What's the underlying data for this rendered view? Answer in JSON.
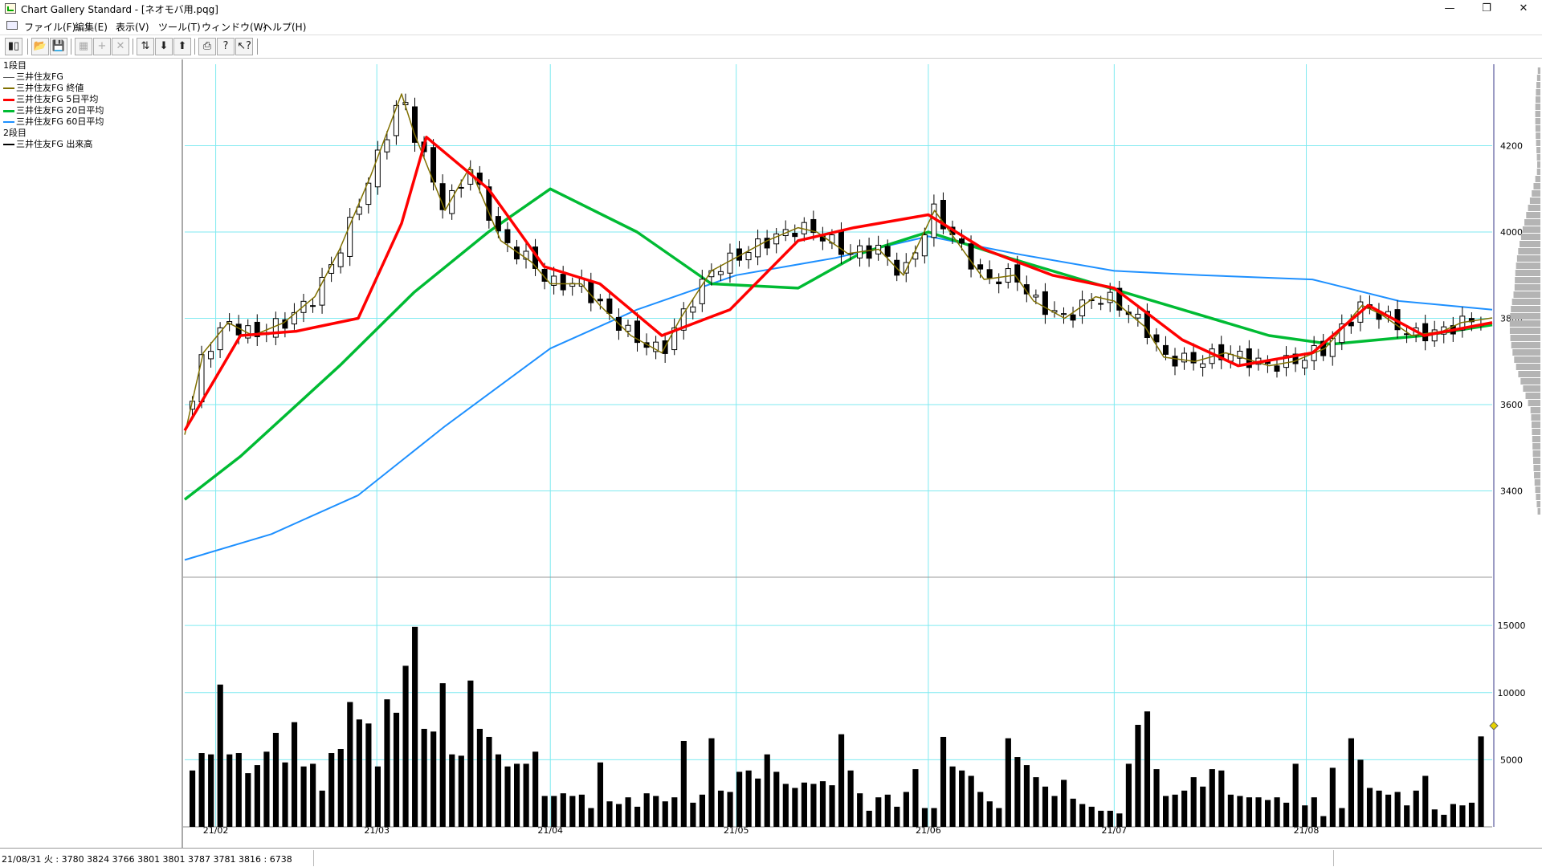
{
  "window": {
    "title": "Chart Gallery Standard - [ネオモバ用.pqg]",
    "controls": {
      "minimize": "—",
      "restore": "❐",
      "close": "✕"
    }
  },
  "menu": {
    "items": [
      "ファイル(F)",
      "編集(E)",
      "表示(V)",
      "ツール(T)",
      "ウィンドウ(W)",
      "ヘルプ(H)"
    ],
    "mdi_controls": [
      "_",
      "▫",
      "×"
    ]
  },
  "toolbar": {
    "buttons": [
      {
        "icon": "chart-settings-icon",
        "glyph": "▮▯"
      },
      {
        "icon": "open-folder-icon",
        "glyph": "📂"
      },
      {
        "icon": "save-icon",
        "glyph": "💾"
      },
      {
        "icon": "properties-icon",
        "glyph": "▦"
      },
      {
        "icon": "add-icon",
        "glyph": "+"
      },
      {
        "icon": "delete-icon",
        "glyph": "✕"
      },
      {
        "icon": "shift-icon",
        "glyph": "⇅"
      },
      {
        "icon": "download-icon",
        "glyph": "⬇"
      },
      {
        "icon": "upload-icon",
        "glyph": "⬆"
      },
      {
        "icon": "print-icon",
        "glyph": "⎙"
      },
      {
        "icon": "help-icon",
        "glyph": "?"
      },
      {
        "icon": "context-help-icon",
        "glyph": "↖?"
      }
    ]
  },
  "legend": {
    "panel1_label": "1段目",
    "panel1_items": [
      {
        "label": "三井住友FG",
        "color": "#555555"
      },
      {
        "label": "三井住友FG 終値",
        "color": "#807000"
      },
      {
        "label": "三井住友FG 5日平均",
        "color": "#ff0000"
      },
      {
        "label": "三井住友FG 20日平均",
        "color": "#00bb33"
      },
      {
        "label": "三井住友FG 60日平均",
        "color": "#1e90ff"
      }
    ],
    "panel2_label": "2段目",
    "panel2_items": [
      {
        "label": "三井住友FG 出来高",
        "color": "#000000"
      }
    ]
  },
  "status": {
    "text": "21/08/31 火 : 3780 3824 3766 3801  3801 3787 3781 3816 : 6738"
  },
  "colors": {
    "grid": "#7feaf0",
    "close_line": "#807000",
    "ma5": "#ff0000",
    "ma20": "#00bb33",
    "ma60": "#1e90ff",
    "volume": "#000000",
    "histogram": "#b4b4b4",
    "cursor_marker": "#e6d200"
  },
  "chart_data": {
    "type": "candlestick",
    "title": "",
    "price_panel": {
      "ylim": [
        3200,
        4400
      ],
      "yticks": [
        3400,
        3600,
        3800,
        4000,
        4200
      ],
      "series": [
        {
          "name": "三井住友FG 終値",
          "type": "line",
          "x": [
            "21/02/01",
            "21/02/04",
            "21/02/08",
            "21/02/12",
            "21/02/17",
            "21/02/22",
            "21/02/26",
            "21/03/03",
            "21/03/08",
            "21/03/10",
            "21/03/15",
            "21/03/19",
            "21/03/24",
            "21/03/29",
            "21/04/01",
            "21/04/06",
            "21/04/09",
            "21/04/14",
            "21/04/19",
            "21/04/22",
            "21/04/27",
            "21/05/06",
            "21/05/11",
            "21/05/14",
            "21/05/19",
            "21/05/24",
            "21/05/28",
            "21/06/02",
            "21/06/07",
            "21/06/10",
            "21/06/15",
            "21/06/18",
            "21/06/23",
            "21/06/28",
            "21/07/01",
            "21/07/06",
            "21/07/09",
            "21/07/14",
            "21/07/19",
            "21/07/26",
            "21/07/30",
            "21/08/04",
            "21/08/10",
            "21/08/13",
            "21/08/18",
            "21/08/23",
            "21/08/26",
            "21/08/31"
          ],
          "values": [
            3530,
            3720,
            3790,
            3760,
            3790,
            3850,
            3960,
            4130,
            4320,
            4230,
            4050,
            4150,
            3980,
            3930,
            3880,
            3880,
            3830,
            3760,
            3720,
            3800,
            3910,
            3980,
            4010,
            4000,
            3950,
            3960,
            3900,
            4050,
            3950,
            3890,
            3900,
            3840,
            3800,
            3850,
            3840,
            3780,
            3710,
            3700,
            3720,
            3690,
            3700,
            3730,
            3830,
            3810,
            3760,
            3770,
            3790,
            3801
          ]
        },
        {
          "name": "三井住友FG 5日平均",
          "x": [
            "21/02/01",
            "21/02/10",
            "21/02/19",
            "21/03/01",
            "21/03/08",
            "21/03/12",
            "21/03/22",
            "21/03/31",
            "21/04/09",
            "21/04/19",
            "21/04/30",
            "21/05/11",
            "21/05/20",
            "21/06/01",
            "21/06/10",
            "21/06/21",
            "21/07/01",
            "21/07/12",
            "21/07/21",
            "21/08/02",
            "21/08/11",
            "21/08/20",
            "21/08/31"
          ],
          "values": [
            3540,
            3760,
            3770,
            3800,
            4020,
            4220,
            4100,
            3920,
            3880,
            3760,
            3820,
            3980,
            4010,
            4040,
            3960,
            3900,
            3870,
            3750,
            3690,
            3720,
            3830,
            3760,
            3790
          ]
        },
        {
          "name": "三井住友FG 20日平均",
          "x": [
            "21/02/01",
            "21/02/10",
            "21/02/26",
            "21/03/10",
            "21/03/22",
            "21/04/01",
            "21/04/15",
            "21/04/27",
            "21/05/11",
            "21/05/21",
            "21/06/01",
            "21/06/14",
            "21/06/28",
            "21/07/12",
            "21/07/26",
            "21/08/05",
            "21/08/20",
            "21/08/31"
          ],
          "values": [
            3380,
            3480,
            3690,
            3860,
            4000,
            4100,
            4000,
            3880,
            3870,
            3950,
            4000,
            3940,
            3880,
            3820,
            3760,
            3740,
            3760,
            3785
          ]
        },
        {
          "name": "三井住友FG 60日平均",
          "x": [
            "21/02/01",
            "21/02/15",
            "21/03/01",
            "21/03/15",
            "21/04/01",
            "21/04/15",
            "21/05/01",
            "21/05/17",
            "21/06/01",
            "21/06/15",
            "21/07/01",
            "21/07/15",
            "21/08/02",
            "21/08/16",
            "21/08/31"
          ],
          "values": [
            3240,
            3300,
            3390,
            3550,
            3730,
            3820,
            3900,
            3940,
            3990,
            3950,
            3910,
            3900,
            3890,
            3840,
            3820
          ]
        }
      ],
      "last_ohlc": {
        "date": "21/08/31",
        "open": 3780,
        "high": 3824,
        "low": 3766,
        "close": 3801
      }
    },
    "volume_panel": {
      "name": "三井住友FG 出来高",
      "yticks": [
        5000,
        10000,
        15000
      ],
      "values": [
        4200,
        5500,
        5400,
        10600,
        5400,
        5500,
        4000,
        4600,
        5600,
        7000,
        4800,
        7800,
        4500,
        4700,
        2700,
        5500,
        5800,
        9300,
        8000,
        7700,
        4500,
        9500,
        8500,
        12000,
        14900,
        7300,
        7100,
        10700,
        5400,
        5300,
        10900,
        7300,
        6700,
        5400,
        4500,
        4700,
        4700,
        5600,
        2300,
        2300,
        2500,
        2300,
        2400,
        1400,
        4800,
        1900,
        1700,
        2200,
        1500,
        2500,
        2300,
        1900,
        2200,
        6400,
        1800,
        2400,
        6600,
        2700,
        2600,
        4100,
        4200,
        3600,
        5400,
        4100,
        3200,
        2900,
        3300,
        3200,
        3400,
        3100,
        6900,
        4200,
        2500,
        1200,
        2200,
        2400,
        1500,
        2600,
        4300,
        1400,
        1400,
        6700,
        4500,
        4200,
        3800,
        2600,
        1900,
        1400,
        6600,
        5200,
        4600,
        3700,
        3000,
        2300,
        3500,
        2100,
        1700,
        1500,
        1200,
        1200,
        1000,
        4700,
        7600,
        8600,
        4300,
        2300,
        2400,
        2700,
        3700,
        3000,
        4300,
        4200,
        2400,
        2300,
        2200,
        2200,
        2000,
        2200,
        1800,
        4700,
        1600,
        2200,
        800,
        4400,
        1400,
        6600,
        5000,
        2900,
        2700,
        2400,
        2600,
        1600,
        2700,
        3800,
        1300,
        900,
        1700,
        1600,
        1800,
        6738
      ]
    },
    "x_tick_labels": [
      "21/02",
      "21/03",
      "21/04",
      "21/05",
      "21/06",
      "21/07",
      "21/08"
    ],
    "grid": true
  }
}
